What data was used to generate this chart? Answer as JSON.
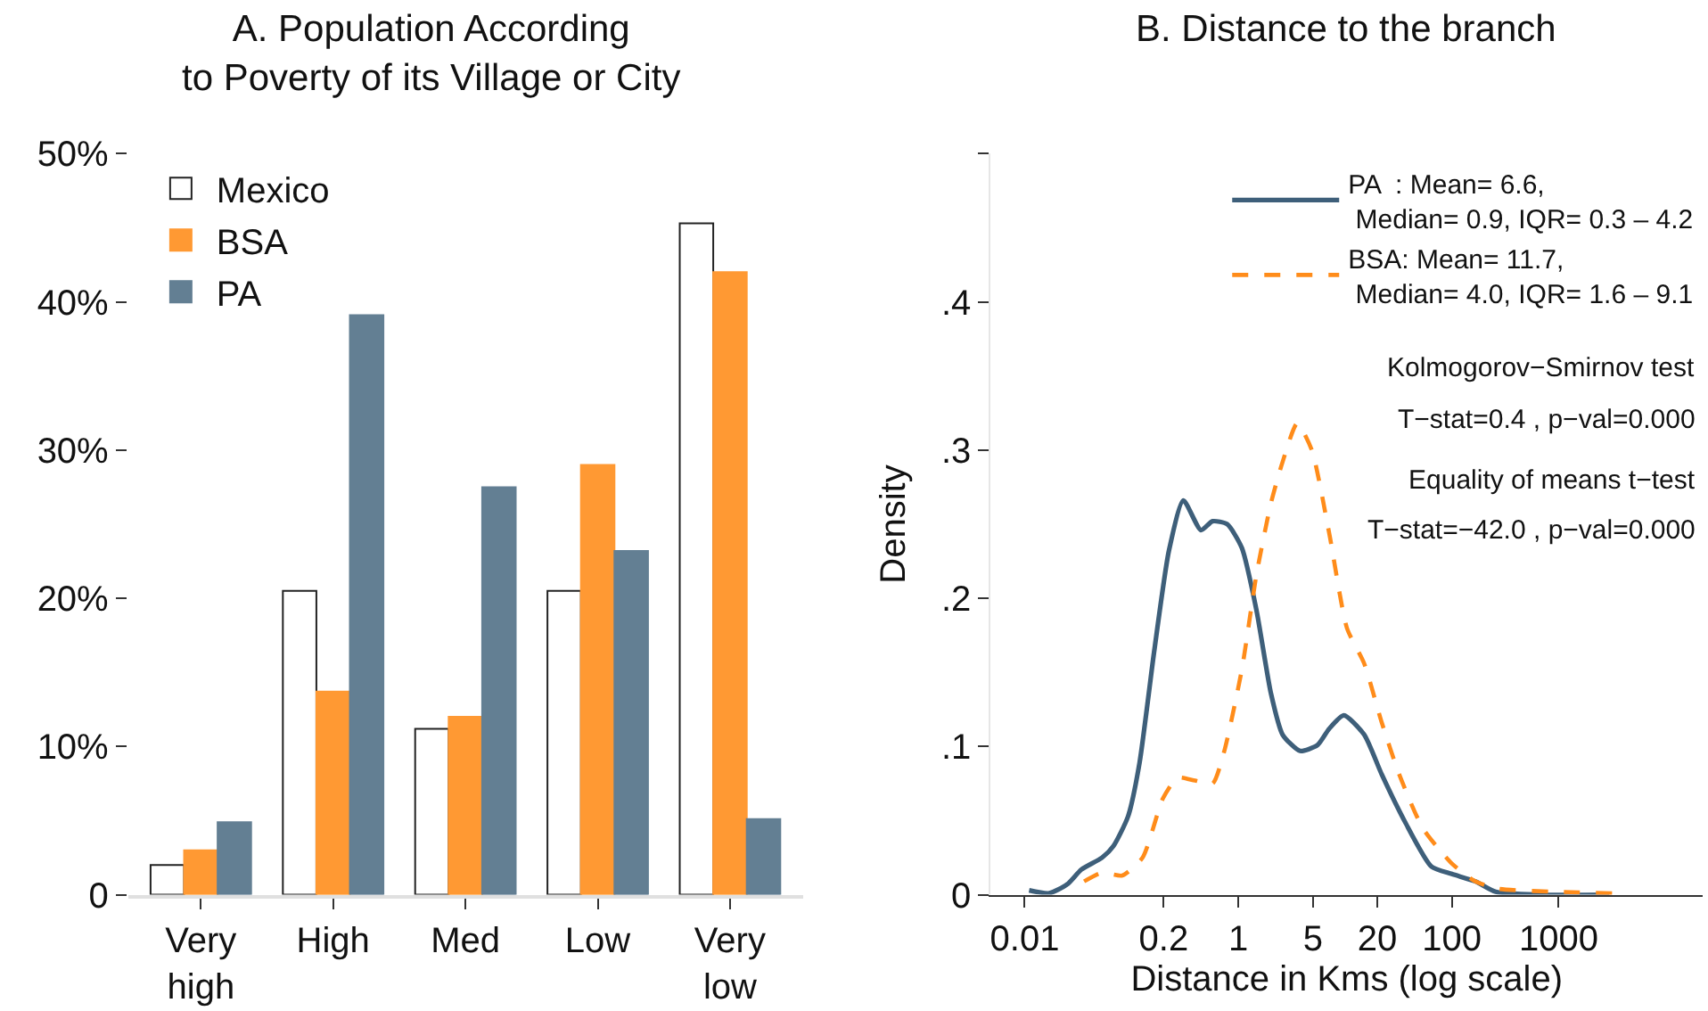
{
  "chart_data": [
    {
      "type": "bar",
      "title": "A. Population According\nto Poverty of its Village or City",
      "categories": [
        "Very\nhigh",
        "High",
        "Med",
        "Low",
        "Very\nlow"
      ],
      "series": [
        {
          "name": "Mexico",
          "color": "#ffffff",
          "values": [
            2.0,
            20.5,
            11.2,
            20.5,
            45.3
          ]
        },
        {
          "name": "BSA",
          "color": "#ff9933",
          "values": [
            3.0,
            13.7,
            12.0,
            29.0,
            42.0
          ]
        },
        {
          "name": "PA",
          "color": "#637f93",
          "values": [
            4.9,
            39.1,
            27.5,
            23.2,
            5.1
          ]
        }
      ],
      "ylim": [
        0,
        50
      ],
      "yticks": [
        0,
        {
          "value": 10,
          "label": "10%"
        },
        {
          "value": 20,
          "label": "20%"
        },
        {
          "value": 30,
          "label": "30%"
        },
        {
          "value": 40,
          "label": "40%"
        },
        {
          "value": 50,
          "label": "50%"
        }
      ],
      "legend": "top left"
    },
    {
      "type": "line",
      "title": "B. Distance to the branch",
      "xlabel": "Distance in Kms (log scale)",
      "ylabel": "Density",
      "log": "x",
      "series": [
        {
          "name": "PA  : Mean= 6.6,\n Median= 0.9, IQR= 0.3 – 4.2",
          "color": "#3e5f7a",
          "line_style": "solid",
          "x": [
            0.011,
            0.017,
            0.025,
            0.034,
            0.053,
            0.068,
            0.093,
            0.119,
            0.163,
            0.224,
            0.306,
            0.447,
            0.575,
            0.787,
            1.08,
            1.48,
            2.02,
            2.6,
            3.79,
            5.53,
            7.1,
            9.75,
            15.1,
            22.1,
            36.5,
            64.4,
            100,
            166,
            257,
            661,
            2985
          ],
          "values": [
            0.003,
            0.001,
            0.007,
            0.017,
            0.025,
            0.033,
            0.053,
            0.089,
            0.164,
            0.232,
            0.266,
            0.246,
            0.252,
            0.25,
            0.234,
            0.192,
            0.136,
            0.108,
            0.097,
            0.101,
            0.112,
            0.121,
            0.108,
            0.081,
            0.049,
            0.019,
            0.014,
            0.009,
            0.002,
            0.0,
            0.0
          ]
        },
        {
          "name": "BSA: Mean= 11.7,\n Median= 4.0, IQR= 1.6 – 9.1",
          "color": "#ff8c1a",
          "line_style": "dashed",
          "x": [
            0.036,
            0.053,
            0.082,
            0.127,
            0.197,
            0.27,
            0.394,
            0.575,
            0.74,
            1.08,
            1.48,
            2.02,
            2.6,
            3.56,
            4.88,
            7.1,
            10.4,
            15.1,
            22.1,
            32.2,
            53.3,
            100,
            166,
            274,
            955,
            3160
          ],
          "values": [
            0.009,
            0.015,
            0.013,
            0.025,
            0.065,
            0.079,
            0.077,
            0.075,
            0.097,
            0.152,
            0.216,
            0.264,
            0.292,
            0.318,
            0.3,
            0.244,
            0.18,
            0.156,
            0.116,
            0.081,
            0.045,
            0.021,
            0.009,
            0.004,
            0.002,
            0.001
          ]
        }
      ],
      "xlim": [
        0.0048,
        22400
      ],
      "xticks": [
        0.01,
        0.2,
        1,
        5,
        20,
        100,
        1000
      ],
      "ylim": [
        0,
        0.5
      ],
      "yticks": [
        0,
        {
          "value": 0.1,
          "label": ".1"
        },
        {
          "value": 0.2,
          "label": ".2"
        },
        {
          "value": 0.3,
          "label": ".3"
        },
        {
          "value": 0.4,
          "label": ".4"
        },
        {
          "value": 0.5,
          "label": null
        }
      ],
      "legend": "top right",
      "annotations": [
        "Kolmogorov−Smirnov test",
        "T−stat=0.4 , p−val=0.000",
        "Equality of means t−test",
        "T−stat=−42.0 , p−val=0.000"
      ]
    }
  ]
}
